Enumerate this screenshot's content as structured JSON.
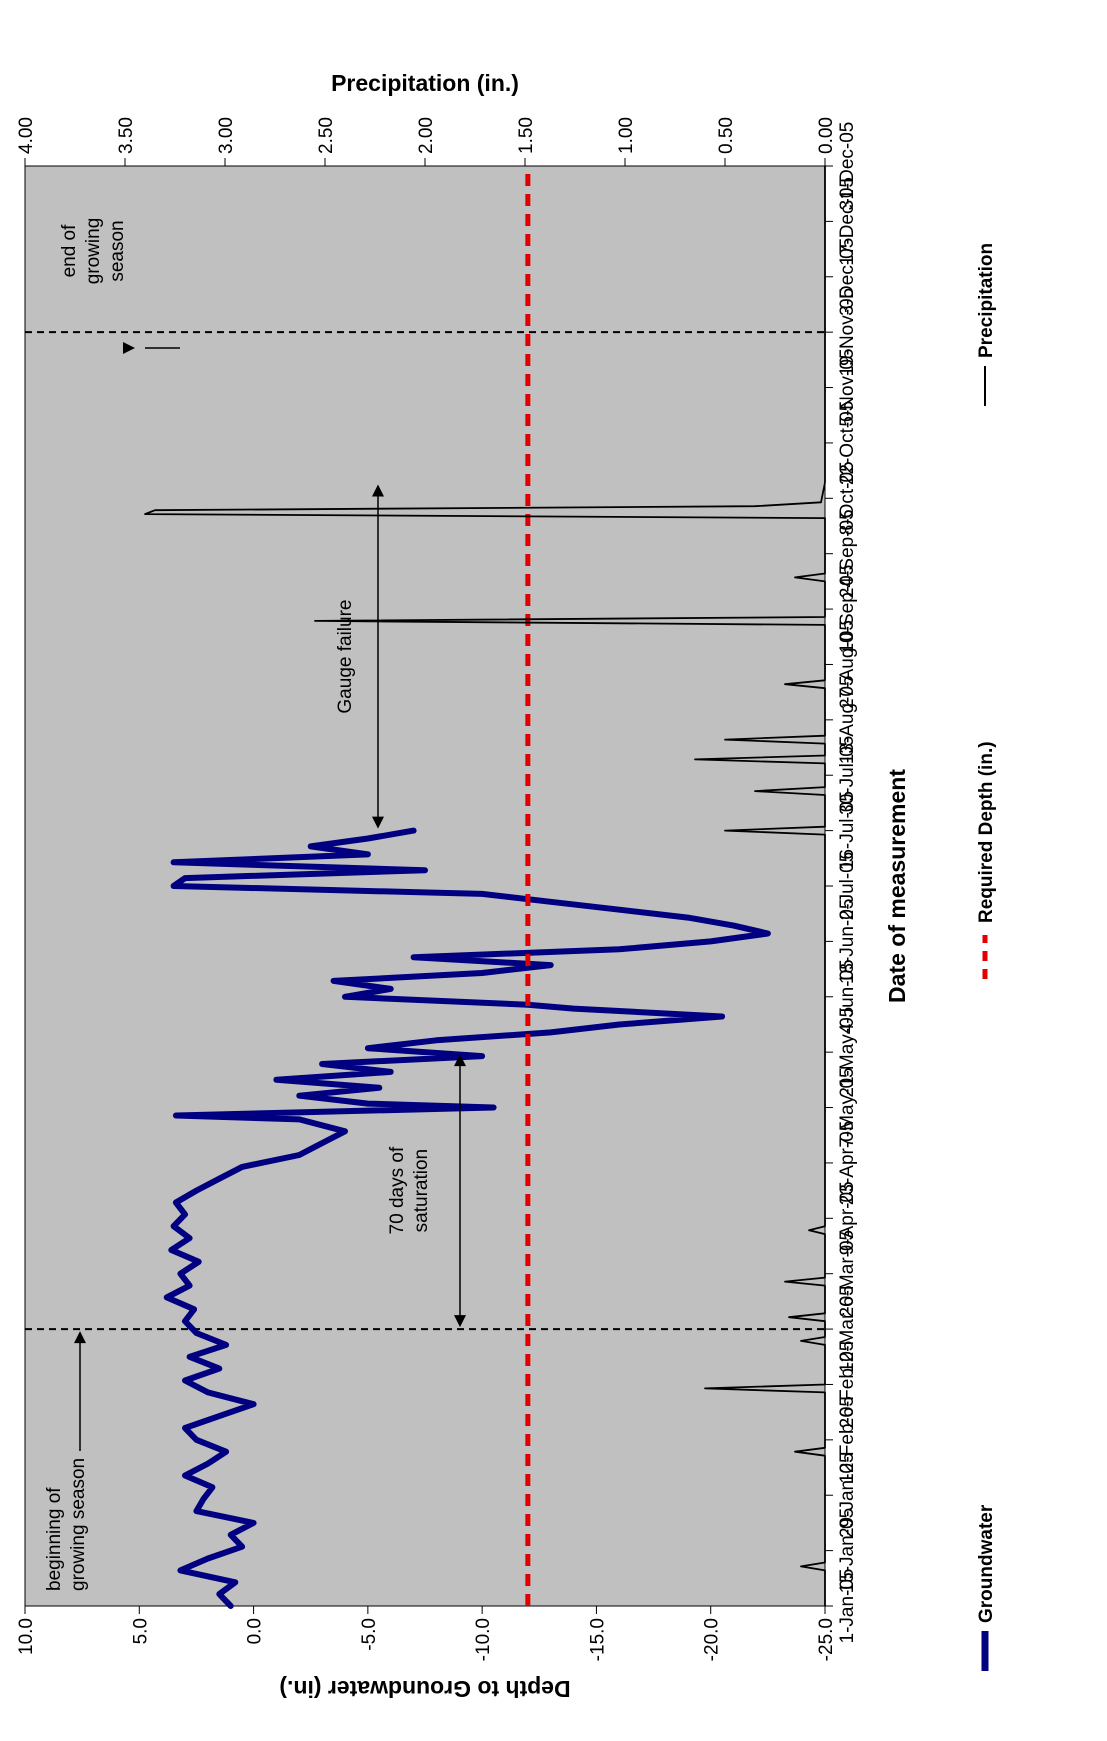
{
  "chart_data": {
    "type": "line",
    "rotation": "rotated 90 degrees counter-clockwise",
    "xlabel": "Date of measurement",
    "ylabel_left": "Depth to Groundwater (in.)",
    "ylabel_right": "Precipitation (in.)",
    "ylim_left": [
      -25.0,
      10.0
    ],
    "ylim_right": [
      0.0,
      4.0
    ],
    "grid": false,
    "legend_position": "bottom",
    "x_ticks": [
      "1-Jan-05",
      "15-Jan-05",
      "29-Jan-05",
      "12-Feb-05",
      "26-Feb-05",
      "12-Mar-05",
      "26-Mar-05",
      "9-Apr-05",
      "23-Apr-05",
      "7-May-05",
      "21-May-05",
      "4-Jun-05",
      "18-Jun-05",
      "2-Jul-05",
      "16-Jul-05",
      "30-Jul-05",
      "13-Aug-05",
      "27-Aug-05",
      "10-Sep-05",
      "24-Sep-05",
      "8-Oct-05",
      "22-Oct-05",
      "5-Nov-05",
      "19-Nov-05",
      "3-Dec-05",
      "17-Dec-05",
      "31-Dec-05"
    ],
    "y_ticks_left": [
      "10.0",
      "5.0",
      "0.0",
      "-5.0",
      "-10.0",
      "-15.0",
      "-20.0",
      "-25.0"
    ],
    "y_ticks_right": [
      "4.00",
      "3.50",
      "3.00",
      "2.50",
      "2.00",
      "1.50",
      "1.00",
      "0.50",
      "0.00"
    ],
    "required_depth": -12.0,
    "growing_season_start": "12-Mar-05",
    "growing_season_end": "19-Nov-05",
    "series": [
      {
        "name": "Groundwater",
        "color": "#000080",
        "axis": "left",
        "x_dates": [
          "1-Jan-05",
          "4-Jan-05",
          "7-Jan-05",
          "10-Jan-05",
          "13-Jan-05",
          "16-Jan-05",
          "19-Jan-05",
          "22-Jan-05",
          "25-Jan-05",
          "28-Jan-05",
          "31-Jan-05",
          "3-Feb-05",
          "6-Feb-05",
          "9-Feb-05",
          "12-Feb-05",
          "15-Feb-05",
          "18-Feb-05",
          "21-Feb-05",
          "24-Feb-05",
          "27-Feb-05",
          "2-Mar-05",
          "5-Mar-05",
          "8-Mar-05",
          "11-Mar-05",
          "14-Mar-05",
          "17-Mar-05",
          "20-Mar-05",
          "23-Mar-05",
          "26-Mar-05",
          "29-Mar-05",
          "1-Apr-05",
          "4-Apr-05",
          "7-Apr-05",
          "10-Apr-05",
          "13-Apr-05",
          "16-Apr-05",
          "19-Apr-05",
          "22-Apr-05",
          "25-Apr-05",
          "28-Apr-05",
          "1-May-05",
          "4-May-05",
          "5-May-05",
          "7-May-05",
          "8-May-05",
          "10-May-05",
          "12-May-05",
          "14-May-05",
          "16-May-05",
          "18-May-05",
          "20-May-05",
          "22-May-05",
          "24-May-05",
          "26-May-05",
          "28-May-05",
          "30-May-05",
          "1-Jun-05",
          "2-Jun-05",
          "4-Jun-05",
          "6-Jun-05",
          "8-Jun-05",
          "10-Jun-05",
          "12-Jun-05",
          "14-Jun-05",
          "16-Jun-05",
          "18-Jun-05",
          "20-Jun-05",
          "22-Jun-05",
          "24-Jun-05",
          "26-Jun-05",
          "28-Jun-05",
          "30-Jun-05",
          "2-Jul-05",
          "4-Jul-05",
          "6-Jul-05",
          "8-Jul-05",
          "10-Jul-05",
          "12-Jul-05",
          "14-Jul-05",
          "16-Jul-05"
        ],
        "values": [
          1.0,
          1.5,
          0.8,
          3.2,
          2.0,
          0.5,
          1.0,
          0.0,
          2.5,
          2.2,
          1.8,
          3.0,
          2.0,
          1.2,
          2.5,
          3.0,
          1.5,
          0.0,
          2.0,
          3.0,
          1.5,
          2.8,
          1.2,
          2.5,
          3.0,
          2.6,
          3.8,
          2.8,
          3.2,
          2.4,
          3.6,
          2.8,
          3.5,
          3.0,
          3.4,
          2.5,
          1.5,
          0.5,
          -2.0,
          -3.0,
          -4.0,
          -2.0,
          3.4,
          -10.5,
          -5.0,
          -2.0,
          -5.5,
          -1.0,
          -6.0,
          -3.0,
          -10.0,
          -5.0,
          -8.0,
          -13.0,
          -16.0,
          -20.5,
          -14.0,
          -12.0,
          -4.0,
          -6.0,
          -3.5,
          -10.0,
          -13.0,
          -7.0,
          -16.0,
          -20.0,
          -22.5,
          -21.0,
          -19.0,
          -16.0,
          -13.0,
          -10.0,
          3.5,
          3.0,
          -7.5,
          3.5,
          -5.0,
          -2.5,
          -5.0,
          -7.0
        ]
      },
      {
        "name": "Required Depth (in.)",
        "color": "#e00000",
        "axis": "left",
        "style": "dashed",
        "x_dates": [
          "1-Jan-05",
          "31-Dec-05"
        ],
        "values": [
          -12.0,
          -12.0
        ]
      },
      {
        "name": "Precipitation",
        "color": "#000000",
        "axis": "right",
        "x_dates": [
          "1-Jan-05",
          "10-Jan-05",
          "11-Jan-05",
          "12-Jan-05",
          "8-Feb-05",
          "9-Feb-05",
          "10-Feb-05",
          "12-Feb-05",
          "24-Feb-05",
          "25-Feb-05",
          "26-Feb-05",
          "8-Mar-05",
          "9-Mar-05",
          "10-Mar-05",
          "14-Mar-05",
          "15-Mar-05",
          "16-Mar-05",
          "23-Mar-05",
          "24-Mar-05",
          "25-Mar-05",
          "5-Apr-05",
          "6-Apr-05",
          "7-Apr-05",
          "15-Jul-05",
          "16-Jul-05",
          "17-Jul-05",
          "25-Jul-05",
          "26-Jul-05",
          "27-Jul-05",
          "2-Aug-05",
          "3-Aug-05",
          "4-Aug-05",
          "7-Aug-05",
          "8-Aug-05",
          "9-Aug-05",
          "21-Aug-05",
          "22-Aug-05",
          "23-Aug-05",
          "6-Sep-05",
          "7-Sep-05",
          "8-Sep-05",
          "17-Sep-05",
          "18-Sep-05",
          "19-Sep-05",
          "3-Oct-05",
          "4-Oct-05",
          "5-Oct-05",
          "6-Oct-05",
          "7-Oct-05",
          "12-Oct-05",
          "31-Dec-05"
        ],
        "values": [
          0.0,
          0.0,
          0.12,
          0.0,
          0.0,
          0.15,
          0.0,
          0.0,
          0.0,
          0.6,
          0.0,
          0.0,
          0.12,
          0.0,
          0.0,
          0.18,
          0.0,
          0.0,
          0.2,
          0.0,
          0.0,
          0.08,
          0.0,
          0.0,
          0.5,
          0.0,
          0.0,
          0.35,
          0.0,
          0.0,
          0.65,
          0.0,
          0.0,
          0.5,
          0.0,
          0.0,
          0.2,
          0.0,
          0.0,
          2.55,
          0.0,
          0.0,
          0.15,
          0.0,
          0.0,
          3.4,
          3.35,
          0.35,
          0.02,
          0.0,
          0.0
        ]
      }
    ],
    "annotations": [
      {
        "id": "begin",
        "lines": [
          "beginning of",
          "growing season"
        ]
      },
      {
        "id": "saturation",
        "lines": [
          "70 days of",
          "saturation"
        ]
      },
      {
        "id": "gauge",
        "lines": [
          "Gauge failure"
        ]
      },
      {
        "id": "end",
        "lines": [
          "end of",
          "growing",
          "season"
        ]
      }
    ],
    "legend": [
      "Groundwater",
      "Required Depth (in.)",
      "Precipitation"
    ]
  },
  "colors": {
    "plot_bg": "#c0c0c0",
    "groundwater": "#000080",
    "required": "#e00000",
    "precip": "#000000"
  }
}
